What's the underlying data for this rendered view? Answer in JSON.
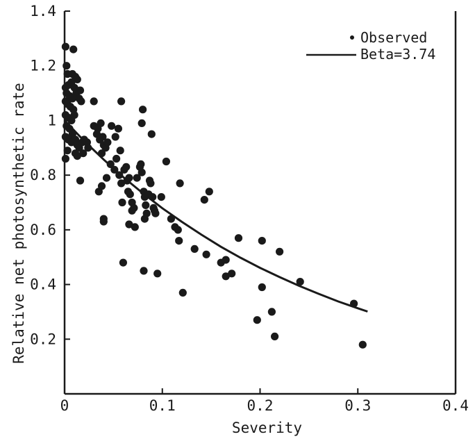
{
  "chart_data": {
    "type": "scatter",
    "title": "",
    "xlabel": "Severity",
    "ylabel": "Relative net photosynthetic rate",
    "xlim": [
      0,
      0.4
    ],
    "ylim": [
      0,
      1.4
    ],
    "x_ticks": [
      "0",
      "0.1",
      "0.2",
      "0.3",
      "0.4"
    ],
    "y_ticks": [
      "0.2",
      "0.4",
      "0.6",
      "0.8",
      "1",
      "1.2",
      "1.4"
    ],
    "grid": false,
    "legend_position": "top-right",
    "series": [
      {
        "name": "Observed",
        "kind": "points",
        "color": "#1a1a1a",
        "points": [
          [
            0.001,
            1.27
          ],
          [
            0.009,
            1.26
          ],
          [
            0.002,
            1.2
          ],
          [
            0.003,
            1.17
          ],
          [
            0.008,
            1.17
          ],
          [
            0.011,
            1.16
          ],
          [
            0.013,
            1.15
          ],
          [
            0.001,
            1.12
          ],
          [
            0.004,
            1.13
          ],
          [
            0.007,
            1.14
          ],
          [
            0.01,
            1.12
          ],
          [
            0.002,
            1.1
          ],
          [
            0.005,
            1.09
          ],
          [
            0.008,
            1.08
          ],
          [
            0.012,
            1.1
          ],
          [
            0.016,
            1.11
          ],
          [
            0.001,
            1.07
          ],
          [
            0.003,
            1.06
          ],
          [
            0.006,
            1.05
          ],
          [
            0.009,
            1.04
          ],
          [
            0.015,
            1.08
          ],
          [
            0.017,
            1.07
          ],
          [
            0.001,
            1.02
          ],
          [
            0.004,
            1.01
          ],
          [
            0.007,
            1.0
          ],
          [
            0.01,
            1.02
          ],
          [
            0.002,
            0.98
          ],
          [
            0.005,
            0.97
          ],
          [
            0.008,
            0.95
          ],
          [
            0.001,
            0.94
          ],
          [
            0.004,
            0.93
          ],
          [
            0.007,
            0.92
          ],
          [
            0.003,
            0.89
          ],
          [
            0.001,
            0.86
          ],
          [
            0.011,
            0.93
          ],
          [
            0.013,
            0.91
          ],
          [
            0.015,
            0.9
          ],
          [
            0.018,
            0.92
          ],
          [
            0.02,
            0.93
          ],
          [
            0.023,
            0.92
          ],
          [
            0.011,
            0.88
          ],
          [
            0.013,
            0.87
          ],
          [
            0.019,
            0.88
          ],
          [
            0.016,
            0.78
          ],
          [
            0.024,
            0.9
          ],
          [
            0.03,
            1.07
          ],
          [
            0.03,
            0.98
          ],
          [
            0.034,
            0.97
          ],
          [
            0.037,
            0.99
          ],
          [
            0.033,
            0.95
          ],
          [
            0.036,
            0.93
          ],
          [
            0.039,
            0.94
          ],
          [
            0.04,
            0.91
          ],
          [
            0.042,
            0.9
          ],
          [
            0.038,
            0.88
          ],
          [
            0.044,
            0.92
          ],
          [
            0.035,
            0.74
          ],
          [
            0.038,
            0.76
          ],
          [
            0.043,
            0.79
          ],
          [
            0.04,
            0.63
          ],
          [
            0.04,
            0.64
          ],
          [
            0.048,
            0.98
          ],
          [
            0.052,
            0.94
          ],
          [
            0.055,
            0.97
          ],
          [
            0.057,
            0.89
          ],
          [
            0.053,
            0.86
          ],
          [
            0.047,
            0.84
          ],
          [
            0.051,
            0.82
          ],
          [
            0.056,
            0.8
          ],
          [
            0.058,
            1.07
          ],
          [
            0.058,
            0.77
          ],
          [
            0.059,
            0.7
          ],
          [
            0.061,
            0.82
          ],
          [
            0.063,
            0.83
          ],
          [
            0.064,
            0.78
          ],
          [
            0.066,
            0.79
          ],
          [
            0.065,
            0.74
          ],
          [
            0.067,
            0.73
          ],
          [
            0.069,
            0.7
          ],
          [
            0.071,
            0.68
          ],
          [
            0.069,
            0.67
          ],
          [
            0.066,
            0.62
          ],
          [
            0.072,
            0.61
          ],
          [
            0.06,
            0.48
          ],
          [
            0.074,
            0.79
          ],
          [
            0.077,
            0.83
          ],
          [
            0.078,
            0.84
          ],
          [
            0.079,
            0.81
          ],
          [
            0.08,
            1.04
          ],
          [
            0.079,
            0.99
          ],
          [
            0.081,
            0.74
          ],
          [
            0.082,
            0.72
          ],
          [
            0.083,
            0.69
          ],
          [
            0.084,
            0.66
          ],
          [
            0.082,
            0.64
          ],
          [
            0.086,
            0.73
          ],
          [
            0.087,
            0.78
          ],
          [
            0.088,
            0.77
          ],
          [
            0.089,
            0.95
          ],
          [
            0.09,
            0.72
          ],
          [
            0.091,
            0.68
          ],
          [
            0.092,
            0.67
          ],
          [
            0.093,
            0.66
          ],
          [
            0.081,
            0.45
          ],
          [
            0.095,
            0.44
          ],
          [
            0.099,
            0.72
          ],
          [
            0.104,
            0.85
          ],
          [
            0.109,
            0.64
          ],
          [
            0.113,
            0.61
          ],
          [
            0.116,
            0.6
          ],
          [
            0.118,
            0.77
          ],
          [
            0.117,
            0.56
          ],
          [
            0.121,
            0.37
          ],
          [
            0.133,
            0.53
          ],
          [
            0.143,
            0.71
          ],
          [
            0.148,
            0.74
          ],
          [
            0.145,
            0.51
          ],
          [
            0.16,
            0.48
          ],
          [
            0.165,
            0.49
          ],
          [
            0.165,
            0.43
          ],
          [
            0.171,
            0.44
          ],
          [
            0.178,
            0.57
          ],
          [
            0.197,
            0.27
          ],
          [
            0.202,
            0.56
          ],
          [
            0.202,
            0.39
          ],
          [
            0.212,
            0.3
          ],
          [
            0.215,
            0.21
          ],
          [
            0.22,
            0.52
          ],
          [
            0.241,
            0.41
          ],
          [
            0.296,
            0.33
          ],
          [
            0.305,
            0.18
          ]
        ]
      },
      {
        "name": "Beta=3.74",
        "kind": "line",
        "color": "#1a1a1a",
        "x": [
          0.0,
          0.02,
          0.04,
          0.06,
          0.08,
          0.1,
          0.12,
          0.14,
          0.16,
          0.18,
          0.2,
          0.22,
          0.24,
          0.26,
          0.28,
          0.3,
          0.31
        ],
        "y": [
          1.0,
          0.925,
          0.857,
          0.793,
          0.734,
          0.679,
          0.629,
          0.582,
          0.538,
          0.498,
          0.461,
          0.427,
          0.395,
          0.366,
          0.338,
          0.313,
          0.301
        ]
      }
    ]
  }
}
